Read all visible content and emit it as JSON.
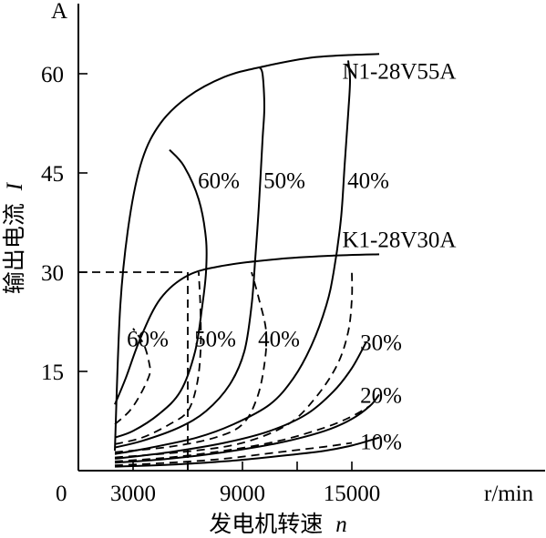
{
  "chart_data": {
    "type": "line",
    "title": "",
    "xlabel": "发电机转速",
    "xlabel_symbol": "n",
    "ylabel": "输出电流",
    "ylabel_symbol": "I",
    "y_unit": "A",
    "x_unit": "r/min",
    "origin_label": "0",
    "xlim": [
      0,
      20000
    ],
    "ylim": [
      0,
      70
    ],
    "x_ticks": [
      3000,
      6000,
      9000,
      12000,
      15000
    ],
    "x_tick_labels": [
      "3000",
      "9000",
      "15000"
    ],
    "y_ticks": [
      15,
      30,
      45,
      60
    ],
    "y_tick_labels": [
      "15",
      "30",
      "45",
      "60"
    ],
    "grid": false,
    "series": [
      {
        "name": "N1-28V55A",
        "style": "solid",
        "points": [
          [
            2000,
            3
          ],
          [
            2300,
            25
          ],
          [
            2800,
            38
          ],
          [
            3500,
            47
          ],
          [
            4500,
            52.5
          ],
          [
            6000,
            56.5
          ],
          [
            8000,
            59.5
          ],
          [
            10000,
            61
          ],
          [
            13000,
            62.5
          ],
          [
            16500,
            63
          ]
        ]
      },
      {
        "name": "K1-28V30A",
        "style": "solid",
        "points": [
          [
            2000,
            10
          ],
          [
            2600,
            14
          ],
          [
            3400,
            20
          ],
          [
            4500,
            26
          ],
          [
            6000,
            29.5
          ],
          [
            8000,
            31
          ],
          [
            11000,
            32
          ],
          [
            14000,
            32.5
          ],
          [
            16500,
            32.7
          ]
        ]
      },
      {
        "name": "60%",
        "style": "solid",
        "points": [
          [
            2000,
            5
          ],
          [
            3000,
            6
          ],
          [
            4400,
            8.5
          ],
          [
            5600,
            12
          ],
          [
            6400,
            18
          ],
          [
            6800,
            25
          ],
          [
            7000,
            30
          ],
          [
            7000,
            35
          ],
          [
            6600,
            41
          ],
          [
            5800,
            46
          ],
          [
            5000,
            48.5
          ]
        ]
      },
      {
        "name": "50%",
        "style": "solid",
        "points": [
          [
            2000,
            3.5
          ],
          [
            3500,
            4.5
          ],
          [
            5500,
            6.5
          ],
          [
            7000,
            9
          ],
          [
            8300,
            13
          ],
          [
            9100,
            18
          ],
          [
            9500,
            25
          ],
          [
            9700,
            32
          ],
          [
            9900,
            40
          ],
          [
            10100,
            50
          ],
          [
            10200,
            55
          ],
          [
            10100,
            60
          ],
          [
            9900,
            61
          ]
        ]
      },
      {
        "name": "40%",
        "style": "solid",
        "points": [
          [
            2000,
            2.5
          ],
          [
            4000,
            3.5
          ],
          [
            6500,
            5
          ],
          [
            8500,
            7
          ],
          [
            10500,
            10
          ],
          [
            11800,
            14
          ],
          [
            12800,
            19
          ],
          [
            13600,
            25
          ],
          [
            14000,
            30
          ],
          [
            14400,
            38
          ],
          [
            14600,
            46
          ],
          [
            14800,
            54
          ],
          [
            14900,
            59
          ],
          [
            14800,
            62
          ]
        ]
      },
      {
        "name": "30%",
        "style": "solid",
        "points": [
          [
            2000,
            1.8
          ],
          [
            5000,
            2.8
          ],
          [
            8000,
            4.2
          ],
          [
            10500,
            6
          ],
          [
            12500,
            8.5
          ],
          [
            14000,
            12
          ],
          [
            15000,
            15.5
          ],
          [
            15800,
            19.5
          ]
        ]
      },
      {
        "name": "20%",
        "style": "solid",
        "points": [
          [
            2000,
            1.2
          ],
          [
            5000,
            1.8
          ],
          [
            8000,
            2.8
          ],
          [
            11000,
            4.2
          ],
          [
            13500,
            6
          ],
          [
            15000,
            7.8
          ],
          [
            16000,
            9.8
          ],
          [
            16500,
            11.5
          ]
        ]
      },
      {
        "name": "10%",
        "style": "solid",
        "points": [
          [
            2000,
            0.6
          ],
          [
            5000,
            0.9
          ],
          [
            8000,
            1.4
          ],
          [
            11000,
            2.2
          ],
          [
            13500,
            3
          ],
          [
            15000,
            3.8
          ],
          [
            16500,
            5
          ]
        ]
      },
      {
        "name": "60%",
        "style": "dashed",
        "points": [
          [
            2000,
            7
          ],
          [
            2800,
            9
          ],
          [
            3400,
            11.5
          ],
          [
            3900,
            14.5
          ],
          [
            3900,
            16
          ],
          [
            3600,
            19
          ],
          [
            3000,
            21.5
          ]
        ]
      },
      {
        "name": "50%",
        "style": "dashed",
        "points": [
          [
            2000,
            4
          ],
          [
            3500,
            5
          ],
          [
            5000,
            7
          ],
          [
            6000,
            9
          ],
          [
            6500,
            13
          ],
          [
            6700,
            18
          ],
          [
            6700,
            24
          ],
          [
            6600,
            30
          ]
        ]
      },
      {
        "name": "40%",
        "style": "dashed",
        "points": [
          [
            2000,
            2.8
          ],
          [
            5000,
            3.6
          ],
          [
            7500,
            5
          ],
          [
            9000,
            7
          ],
          [
            9800,
            11
          ],
          [
            10200,
            16
          ],
          [
            10300,
            21
          ],
          [
            9900,
            26
          ],
          [
            9500,
            30
          ]
        ]
      },
      {
        "name": "30%",
        "style": "dashed",
        "points": [
          [
            2000,
            2
          ],
          [
            6000,
            2.9
          ],
          [
            9000,
            4.2
          ],
          [
            11500,
            7
          ],
          [
            13000,
            11
          ],
          [
            14200,
            16
          ],
          [
            14800,
            21
          ],
          [
            15000,
            26
          ],
          [
            15000,
            30
          ]
        ]
      },
      {
        "name": "20%",
        "style": "dashed",
        "points": [
          [
            2000,
            1.4
          ],
          [
            5000,
            2
          ],
          [
            8000,
            3
          ],
          [
            11000,
            4.5
          ],
          [
            13500,
            6.5
          ],
          [
            15000,
            8.2
          ],
          [
            16000,
            9.8
          ]
        ]
      },
      {
        "name": "10%",
        "style": "dashed",
        "points": [
          [
            2000,
            0.8
          ],
          [
            5000,
            1.2
          ],
          [
            8000,
            1.8
          ],
          [
            11000,
            2.8
          ],
          [
            13500,
            3.6
          ],
          [
            15000,
            4.2
          ]
        ]
      }
    ],
    "reference_line": {
      "style": "dashed",
      "points": [
        [
          0,
          30
        ],
        [
          6000,
          30
        ],
        [
          6000,
          0
        ]
      ]
    },
    "annotations": [
      {
        "text": "N1-28V55A",
        "x": 17600,
        "y": 60.5
      },
      {
        "text": "60%",
        "x": 7700,
        "y": 44
      },
      {
        "text": "50%",
        "x": 11300,
        "y": 44
      },
      {
        "text": "40%",
        "x": 15900,
        "y": 44
      },
      {
        "text": "K1-28V30A",
        "x": 17600,
        "y": 35
      },
      {
        "text": "60%",
        "x": 3800,
        "y": 20
      },
      {
        "text": "50%",
        "x": 7500,
        "y": 20
      },
      {
        "text": "40%",
        "x": 11000,
        "y": 20
      },
      {
        "text": "30%",
        "x": 16600,
        "y": 19.5
      },
      {
        "text": "20%",
        "x": 16600,
        "y": 11.5
      },
      {
        "text": "10%",
        "x": 16600,
        "y": 4.5
      }
    ]
  }
}
